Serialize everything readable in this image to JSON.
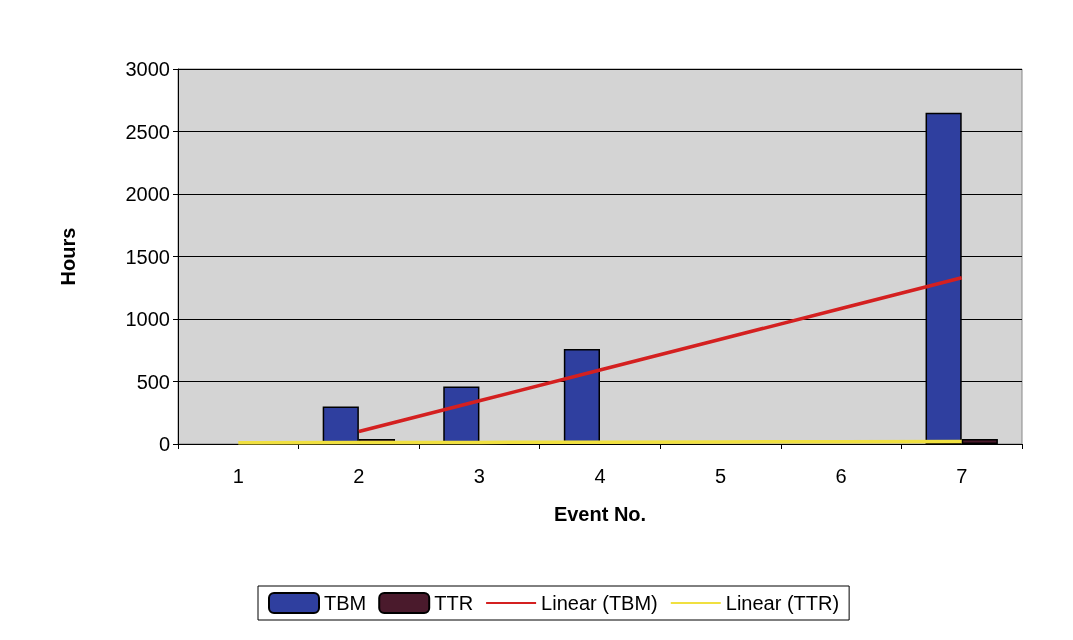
{
  "chart_data": {
    "type": "bar",
    "xlabel": "Event No.",
    "ylabel": "Hours",
    "categories": [
      "1",
      "2",
      "3",
      "4",
      "5",
      "6",
      "7"
    ],
    "series": [
      {
        "name": "TBM",
        "color": "#2f3f9f",
        "values": [
          null,
          300,
          460,
          760,
          null,
          null,
          2650
        ]
      },
      {
        "name": "TTR",
        "color": "#4a1a2c",
        "values": [
          null,
          40,
          null,
          null,
          null,
          null,
          40
        ]
      },
      {
        "name": "Linear (TBM)",
        "type": "line",
        "color": "#d42020",
        "values": [
          null,
          100,
          346,
          592,
          838,
          1084,
          1330
        ]
      },
      {
        "name": "Linear (TTR)",
        "type": "line",
        "color": "#f0e040",
        "values": [
          10,
          12,
          13,
          15,
          17,
          18,
          20
        ]
      }
    ],
    "ylim": [
      0,
      3000
    ],
    "yticks": [
      0,
      500,
      1000,
      1500,
      2000,
      2500,
      3000
    ],
    "grid": "y",
    "legend": "bottom",
    "marker": "none",
    "line_style": "solid"
  }
}
